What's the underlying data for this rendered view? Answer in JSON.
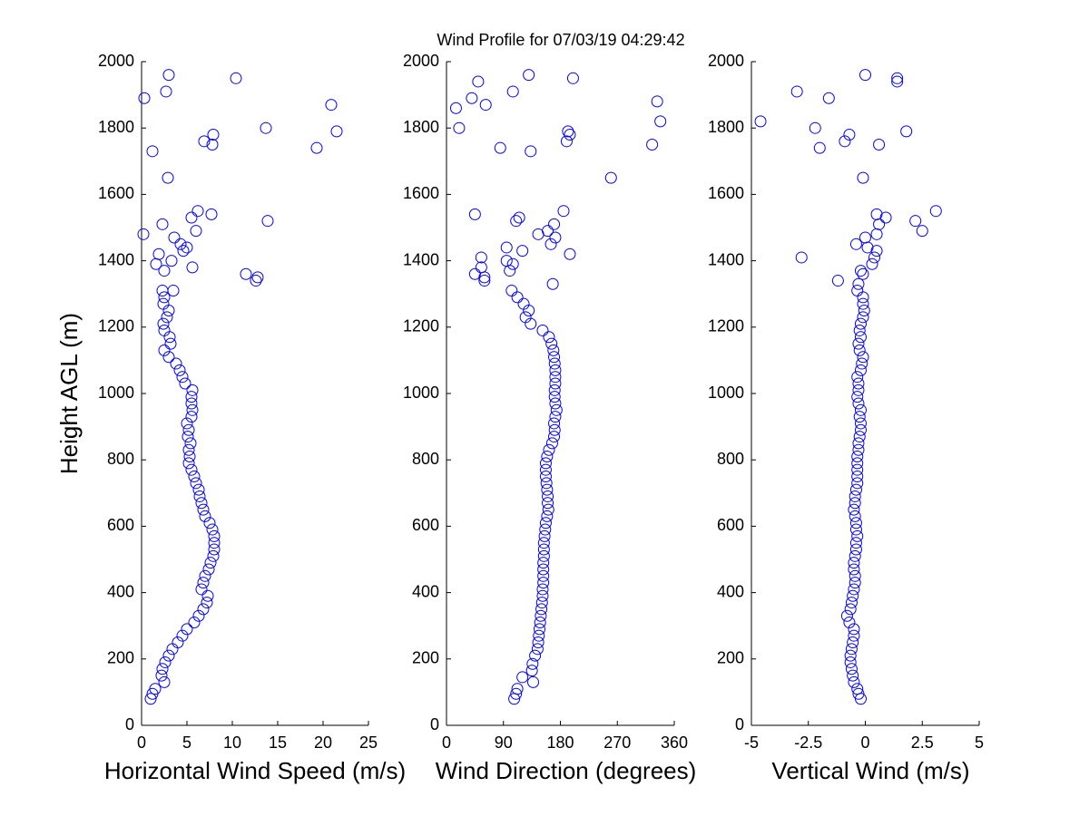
{
  "chart_data": [
    {
      "type": "scatter",
      "title": "Wind Profile for  07/03/19 04:29:42",
      "xlabel": "Horizontal Wind Speed (m/s)",
      "ylabel": "Height AGL (m)",
      "xlim": [
        0,
        25
      ],
      "xticks": [
        0,
        5,
        10,
        15,
        20,
        25
      ],
      "ylim": [
        0,
        2000
      ],
      "yticks": [
        0,
        200,
        400,
        600,
        800,
        1000,
        1200,
        1400,
        1600,
        1800,
        2000
      ],
      "series": [
        {
          "color": "#0000ff",
          "x": [
            1.0,
            1.2,
            1.5,
            2.5,
            2.2,
            2.3,
            2.6,
            3.0,
            3.4,
            4.0,
            4.5,
            5.0,
            5.8,
            6.3,
            6.8,
            7.2,
            7.3,
            6.6,
            6.8,
            7.0,
            7.4,
            7.6,
            7.9,
            8.0,
            8.0,
            8.0,
            7.8,
            7.5,
            7.0,
            6.8,
            6.6,
            6.4,
            6.3,
            6.0,
            5.8,
            5.5,
            5.2,
            5.3,
            5.2,
            5.4,
            5.1,
            5.2,
            5.0,
            5.5,
            5.6,
            5.5,
            5.5,
            5.6,
            4.8,
            4.5,
            4.2,
            3.8,
            3.0,
            2.5,
            3.2,
            3.1,
            2.5,
            2.4,
            2.8,
            3.0,
            2.4,
            2.5,
            2.3,
            0.2,
            0.3,
            1.2,
            1.6,
            1.9,
            2.3,
            2.5,
            2.7,
            3.0,
            2.9,
            3.3,
            3.5,
            3.6,
            4.3,
            4.6,
            5.0,
            5.5,
            5.6,
            6.0,
            6.2,
            6.9,
            7.7,
            7.8,
            7.9,
            10.4,
            11.5,
            12.6,
            12.8,
            13.7,
            13.9,
            19.3,
            20.9,
            21.5
          ],
          "values": [
            80,
            95,
            110,
            130,
            150,
            170,
            190,
            210,
            230,
            250,
            270,
            290,
            310,
            330,
            350,
            370,
            390,
            410,
            430,
            450,
            470,
            490,
            510,
            530,
            550,
            570,
            590,
            610,
            630,
            650,
            670,
            690,
            710,
            730,
            750,
            770,
            790,
            810,
            830,
            850,
            870,
            890,
            910,
            930,
            950,
            970,
            990,
            1010,
            1030,
            1050,
            1070,
            1090,
            1110,
            1130,
            1150,
            1170,
            1190,
            1210,
            1230,
            1250,
            1270,
            1290,
            1310,
            1480,
            1890,
            1730,
            1390,
            1420,
            1510,
            1370,
            1910,
            1960,
            1650,
            1400,
            1310,
            1470,
            1450,
            1430,
            1440,
            1530,
            1380,
            1490,
            1550,
            1760,
            1540,
            1750,
            1780,
            1950,
            1360,
            1340,
            1350,
            1800,
            1520,
            1740,
            1870,
            1790
          ]
        }
      ]
    },
    {
      "type": "scatter",
      "xlabel": "Wind Direction (degrees)",
      "xlim": [
        0,
        360
      ],
      "xticks": [
        0,
        90,
        180,
        270,
        360
      ],
      "ylim": [
        0,
        2000
      ],
      "yticks": [
        0,
        200,
        400,
        600,
        800,
        1000,
        1200,
        1400,
        1600,
        1800,
        2000
      ],
      "series": [
        {
          "color": "#0000ff",
          "x": [
            107,
            110,
            112,
            137,
            120,
            135,
            136,
            140,
            144,
            145,
            146,
            147,
            148,
            149,
            150,
            151,
            152,
            152,
            153,
            153,
            153,
            153,
            154,
            154,
            154,
            155,
            156,
            157,
            159,
            161,
            160,
            160,
            159,
            158,
            157,
            157,
            157,
            159,
            162,
            167,
            170,
            171,
            170,
            172,
            174,
            172,
            171,
            171,
            172,
            172,
            172,
            171,
            170,
            169,
            166,
            162,
            152,
            133,
            125,
            130,
            122,
            112,
            103,
            15,
            20,
            40,
            45,
            45,
            50,
            55,
            55,
            60,
            60,
            62,
            85,
            95,
            95,
            100,
            105,
            105,
            110,
            115,
            120,
            130,
            133,
            145,
            160,
            165,
            168,
            170,
            172,
            185,
            190,
            192,
            195,
            195,
            200,
            260,
            325,
            333,
            338
          ],
          "values": [
            80,
            95,
            110,
            130,
            145,
            165,
            185,
            210,
            230,
            250,
            270,
            290,
            310,
            330,
            350,
            370,
            390,
            410,
            430,
            450,
            470,
            490,
            510,
            530,
            550,
            570,
            590,
            610,
            630,
            650,
            670,
            690,
            710,
            730,
            750,
            770,
            790,
            810,
            830,
            850,
            870,
            890,
            910,
            930,
            950,
            970,
            990,
            1010,
            1030,
            1050,
            1070,
            1090,
            1110,
            1130,
            1150,
            1170,
            1190,
            1210,
            1230,
            1250,
            1270,
            1290,
            1310,
            1860,
            1800,
            1890,
            1540,
            1360,
            1940,
            1410,
            1380,
            1340,
            1350,
            1870,
            1740,
            1440,
            1400,
            1370,
            1390,
            1910,
            1520,
            1530,
            1430,
            1960,
            1730,
            1480,
            1490,
            1450,
            1330,
            1510,
            1470,
            1550,
            1760,
            1790,
            1780,
            1420,
            1950,
            1650,
            1750,
            1880,
            1820
          ]
        }
      ]
    },
    {
      "type": "scatter",
      "xlabel": "Vertical Wind (m/s)",
      "xlim": [
        -5,
        5
      ],
      "xticks": [
        -5,
        -2.5,
        0,
        2.5,
        5
      ],
      "ylim": [
        0,
        2000
      ],
      "yticks": [
        0,
        200,
        400,
        600,
        800,
        1000,
        1200,
        1400,
        1600,
        1800,
        2000
      ],
      "series": [
        {
          "color": "#0000ff",
          "x": [
            -0.2,
            -0.3,
            -0.35,
            -0.5,
            -0.55,
            -0.6,
            -0.65,
            -0.65,
            -0.6,
            -0.55,
            -0.5,
            -0.5,
            -0.7,
            -0.8,
            -0.65,
            -0.6,
            -0.55,
            -0.5,
            -0.45,
            -0.45,
            -0.5,
            -0.5,
            -0.45,
            -0.4,
            -0.4,
            -0.35,
            -0.4,
            -0.4,
            -0.45,
            -0.5,
            -0.45,
            -0.45,
            -0.4,
            -0.35,
            -0.35,
            -0.35,
            -0.35,
            -0.35,
            -0.3,
            -0.3,
            -0.25,
            -0.2,
            -0.2,
            -0.25,
            -0.2,
            -0.3,
            -0.35,
            -0.3,
            -0.3,
            -0.35,
            -0.2,
            -0.15,
            -0.1,
            -0.25,
            -0.3,
            -0.2,
            -0.25,
            -0.2,
            -0.1,
            -0.05,
            -0.1,
            -0.1,
            -0.35,
            -4.6,
            -3.0,
            -2.8,
            -2.2,
            -2.0,
            -1.6,
            -1.2,
            -0.9,
            -0.7,
            -0.4,
            -0.3,
            -0.2,
            -0.1,
            0.0,
            -0.1,
            0.0,
            0.1,
            0.3,
            0.4,
            0.5,
            0.5,
            0.6,
            0.5,
            0.6,
            0.9,
            1.4,
            1.4,
            1.8,
            2.2,
            2.5,
            3.1
          ],
          "values": [
            80,
            95,
            110,
            130,
            150,
            170,
            190,
            210,
            230,
            250,
            270,
            290,
            310,
            330,
            350,
            370,
            390,
            410,
            430,
            450,
            470,
            490,
            510,
            530,
            550,
            570,
            590,
            610,
            630,
            650,
            670,
            690,
            710,
            730,
            750,
            770,
            790,
            810,
            830,
            850,
            870,
            890,
            910,
            930,
            950,
            970,
            990,
            1010,
            1030,
            1050,
            1070,
            1090,
            1110,
            1130,
            1150,
            1170,
            1190,
            1210,
            1230,
            1250,
            1270,
            1290,
            1310,
            1820,
            1910,
            1410,
            1800,
            1740,
            1890,
            1340,
            1760,
            1780,
            1450,
            1330,
            1370,
            1360,
            1960,
            1650,
            1470,
            1440,
            1390,
            1410,
            1430,
            1480,
            1510,
            1540,
            1750,
            1530,
            1950,
            1940,
            1790,
            1520,
            1490,
            1550
          ]
        }
      ]
    }
  ]
}
